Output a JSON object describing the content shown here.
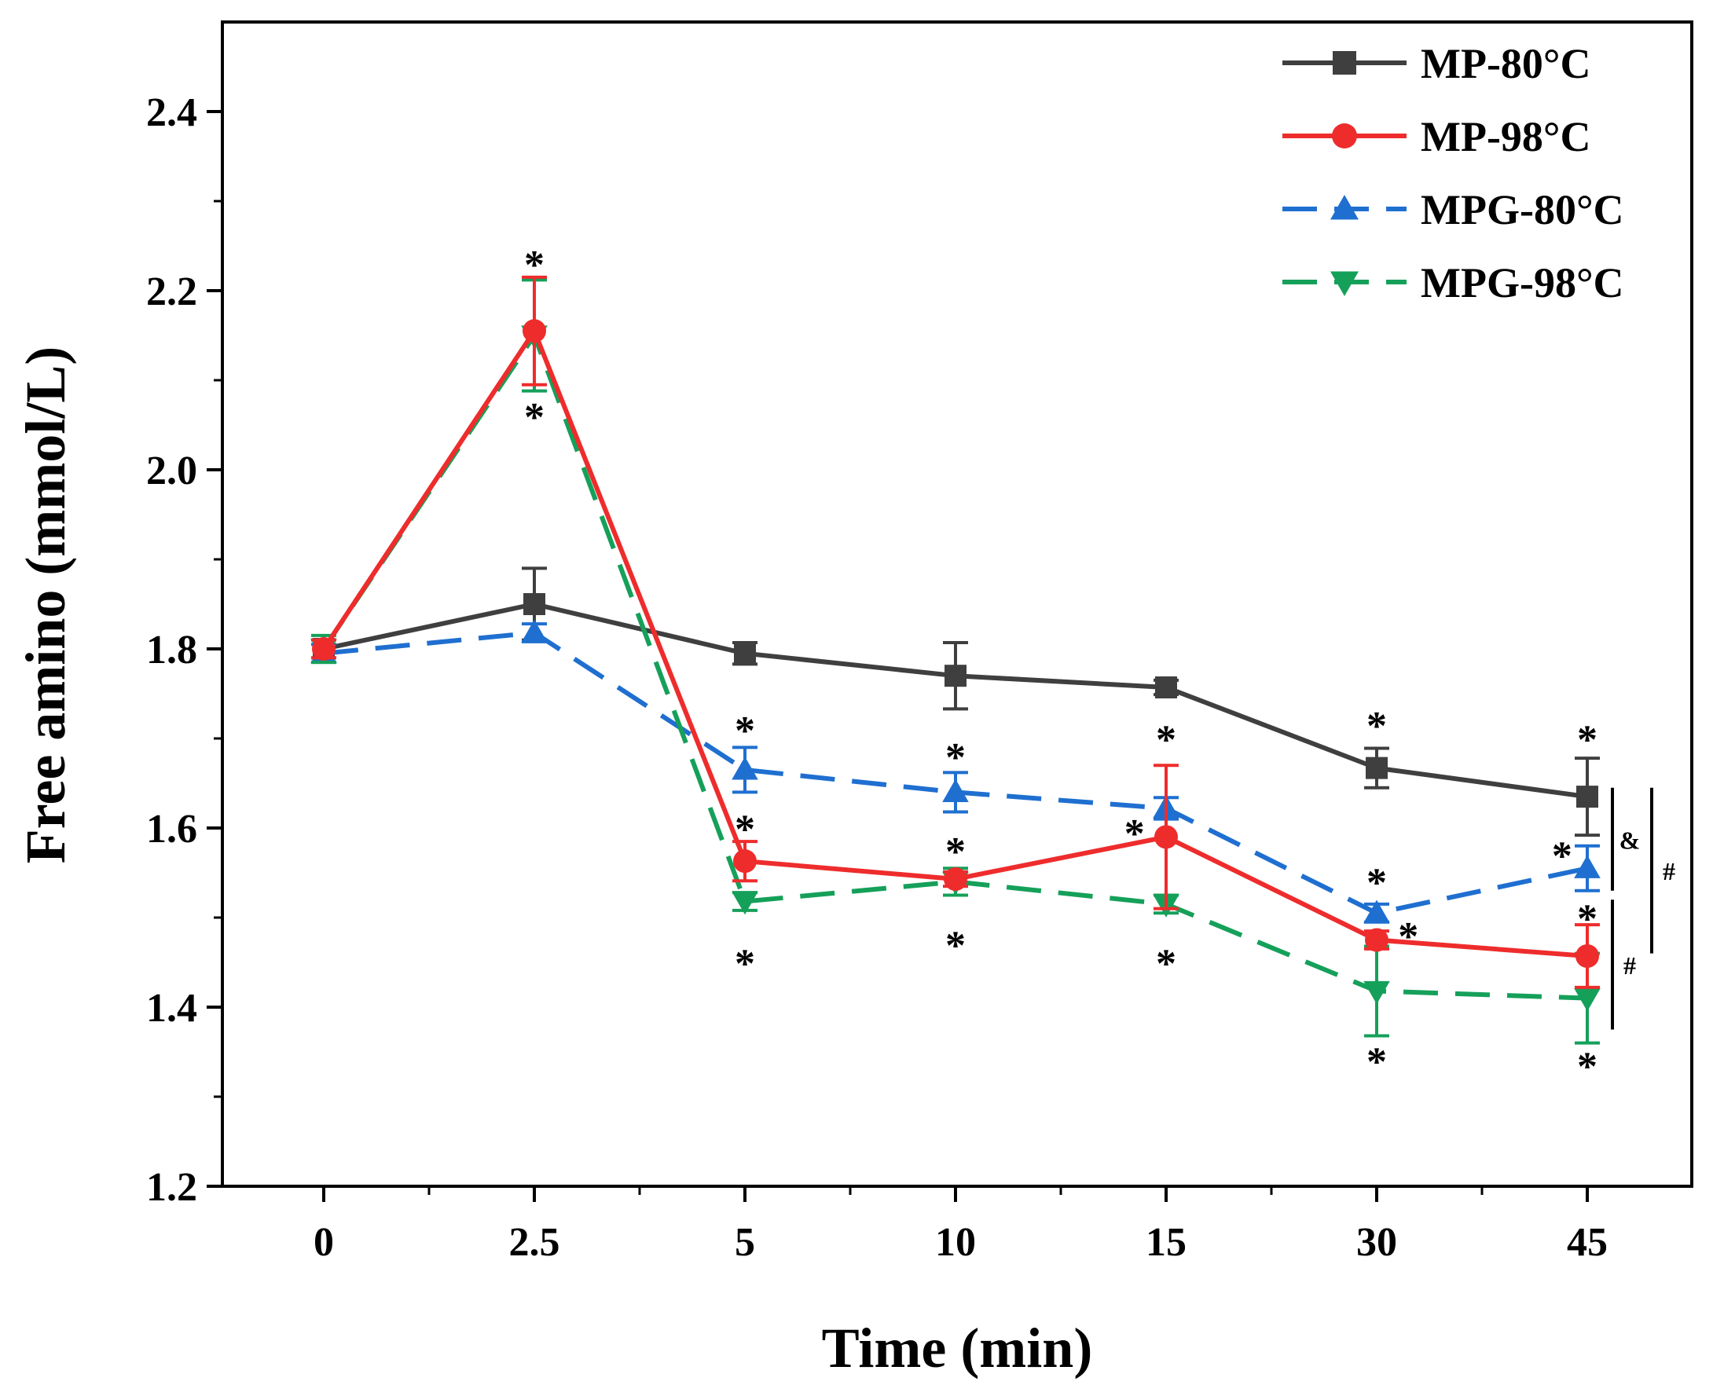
{
  "chart_data": {
    "type": "line",
    "xlabel": "Time (min)",
    "ylabel": "Free amino (mmol/L)",
    "categories": [
      "0",
      "2.5",
      "5",
      "10",
      "15",
      "30",
      "45"
    ],
    "ylim": [
      1.2,
      2.5
    ],
    "yticks": [
      "1.2",
      "1.4",
      "1.6",
      "1.8",
      "2.0",
      "2.2",
      "2.4"
    ],
    "legend_position": "top-right",
    "series": [
      {
        "name": "MP-80°C",
        "color": "#3f3f3f",
        "marker": "square",
        "dash": "solid",
        "values": [
          1.8,
          1.85,
          1.795,
          1.77,
          1.757,
          1.667,
          1.635
        ],
        "errors": [
          0.01,
          0.04,
          0.012,
          0.037,
          0.008,
          0.022,
          0.043
        ]
      },
      {
        "name": "MP-98°C",
        "color": "#ee2c2c",
        "marker": "circle",
        "dash": "solid",
        "values": [
          1.8,
          2.155,
          1.563,
          1.543,
          1.59,
          1.475,
          1.457
        ],
        "errors": [
          0.01,
          0.06,
          0.022,
          0.008,
          0.08,
          0.01,
          0.035
        ]
      },
      {
        "name": "MPG-80°C",
        "color": "#1f6fd0",
        "marker": "triangle-up",
        "dash": "dashed",
        "values": [
          1.795,
          1.818,
          1.665,
          1.64,
          1.622,
          1.505,
          1.555
        ],
        "errors": [
          0.01,
          0.01,
          0.025,
          0.022,
          0.012,
          0.01,
          0.025
        ]
      },
      {
        "name": "MPG-98°C",
        "color": "#15a05a",
        "marker": "triangle-down",
        "dash": "dashed",
        "values": [
          1.8,
          2.15,
          1.518,
          1.54,
          1.515,
          1.418,
          1.41
        ],
        "errors": [
          0.015,
          0.062,
          0.01,
          0.015,
          0.01,
          0.05,
          0.05
        ]
      }
    ],
    "annotations": {
      "significance_marks": [
        {
          "text": "*",
          "x": "2.5",
          "y": 2.235
        },
        {
          "text": "*",
          "x": "2.5",
          "y": 2.065
        },
        {
          "text": "*",
          "x": "5",
          "y": 1.715
        },
        {
          "text": "*",
          "x": "5",
          "y": 1.605
        },
        {
          "text": "*",
          "x": "5",
          "y": 1.455
        },
        {
          "text": "*",
          "x": "10",
          "y": 1.685
        },
        {
          "text": "*",
          "x": "10",
          "y": 1.58
        },
        {
          "text": "*",
          "x": "10",
          "y": 1.475
        },
        {
          "text": "*",
          "x": "15",
          "y": 1.705
        },
        {
          "text": "*",
          "x": "15",
          "y": 1.6,
          "dx": -0.15
        },
        {
          "text": "*",
          "x": "15",
          "y": 1.455
        },
        {
          "text": "*",
          "x": "30",
          "y": 1.72
        },
        {
          "text": "*",
          "x": "30",
          "y": 1.545
        },
        {
          "text": "*",
          "x": "30",
          "y": 1.485,
          "dx": 0.15
        },
        {
          "text": "*",
          "x": "30",
          "y": 1.345
        },
        {
          "text": "*",
          "x": "45",
          "y": 1.705
        },
        {
          "text": "*",
          "x": "45",
          "y": 1.575,
          "dx": -0.12
        },
        {
          "text": "*",
          "x": "45",
          "y": 1.505
        },
        {
          "text": "*",
          "x": "45",
          "y": 1.34
        }
      ],
      "brackets": [
        {
          "symbol": "&",
          "y_from": 1.645,
          "y_to": 1.53,
          "offset": 0
        },
        {
          "symbol": "#",
          "y_from": 1.52,
          "y_to": 1.375,
          "offset": 0
        },
        {
          "symbol": "#",
          "y_from": 1.645,
          "y_to": 1.46,
          "offset": 1
        }
      ]
    }
  }
}
